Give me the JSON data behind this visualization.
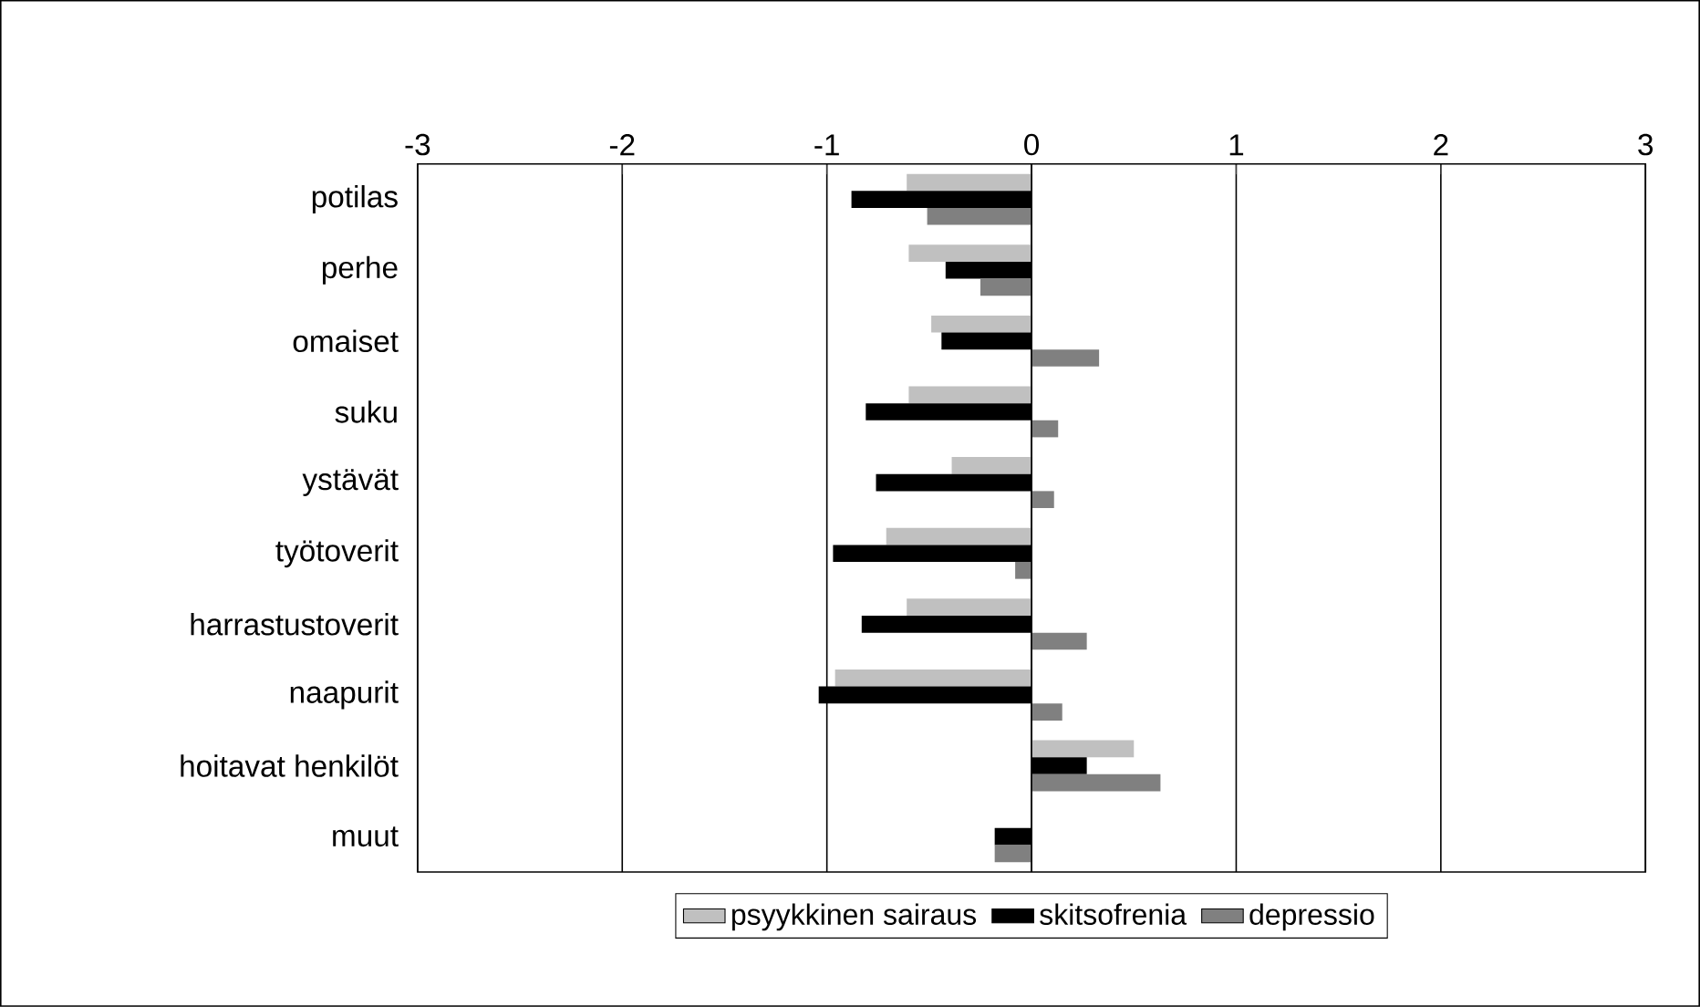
{
  "chart_data": {
    "type": "bar",
    "orientation": "horizontal",
    "categories": [
      "potilas",
      "perhe",
      "omaiset",
      "suku",
      "ystävät",
      "työtoverit",
      "harrastustoverit",
      "naapurit",
      "hoitavat henkilöt",
      "muut"
    ],
    "series": [
      {
        "name": "psyykkinen sairaus",
        "color": "#c0c0c0",
        "values": [
          -0.61,
          -0.6,
          -0.49,
          -0.6,
          -0.39,
          -0.71,
          -0.61,
          -0.96,
          0.5,
          null
        ]
      },
      {
        "name": "skitsofrenia",
        "color": "#000000",
        "values": [
          -0.88,
          -0.42,
          -0.44,
          -0.81,
          -0.76,
          -0.97,
          -0.83,
          -1.04,
          0.27,
          -0.18
        ]
      },
      {
        "name": "depressio",
        "color": "#808080",
        "values": [
          -0.51,
          -0.25,
          0.33,
          0.13,
          0.11,
          -0.08,
          0.27,
          0.15,
          0.63,
          -0.18
        ]
      }
    ],
    "xlim": [
      -3,
      3
    ],
    "xticks": [
      -3,
      -2,
      -1,
      0,
      1,
      2,
      3
    ],
    "grid": "x",
    "legend": "bottom"
  }
}
